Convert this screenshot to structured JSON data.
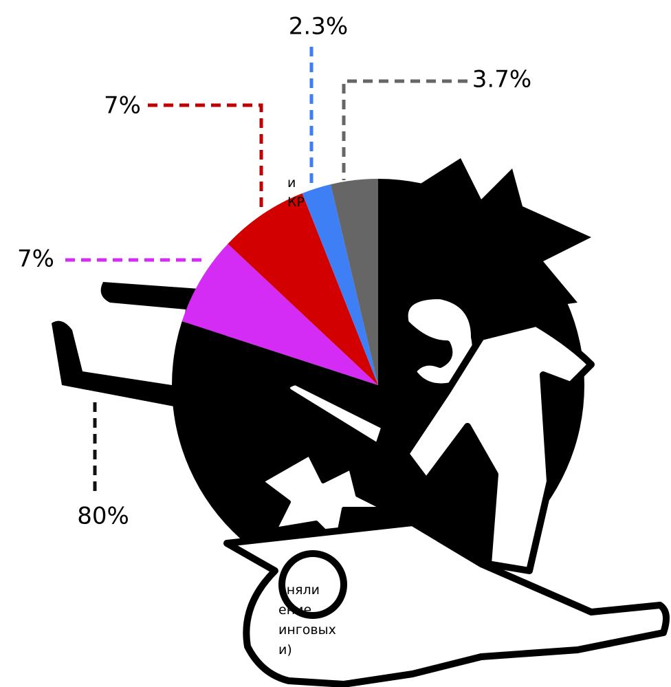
{
  "chart_data": {
    "type": "pie",
    "values": [
      80,
      7,
      7,
      2.3,
      3.7
    ],
    "value_labels": [
      "80%",
      "7%",
      "7%",
      "2.3%",
      "3.7%"
    ],
    "colors": [
      "#000000",
      "#d42bf5",
      "#d30000",
      "#3f7ff5",
      "#666666"
    ],
    "notes": [
      [
        "и",
        "КР"
      ],
      [
        "еняли",
        "ение",
        "инговых",
        "и)"
      ]
    ]
  }
}
